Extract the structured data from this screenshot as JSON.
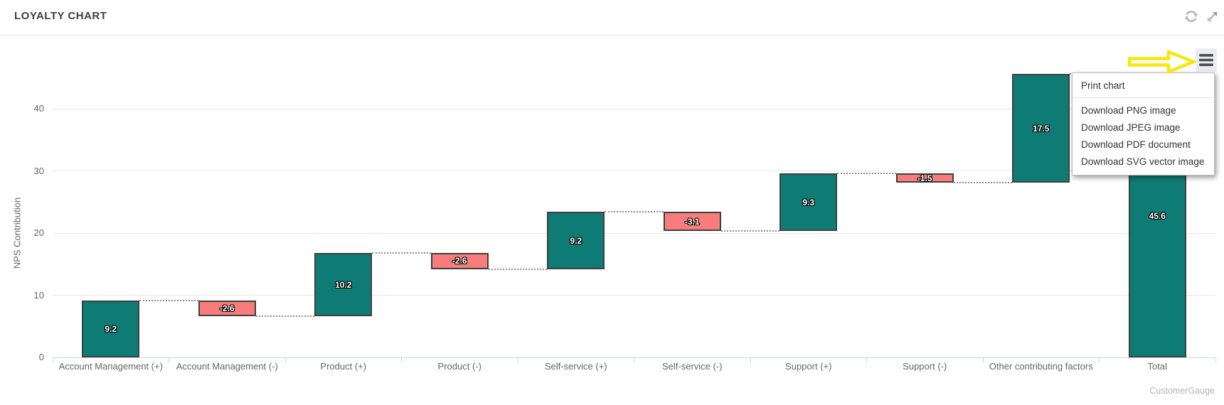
{
  "widget": {
    "title": "LOYALTY CHART"
  },
  "header_icons": [
    "refresh-icon",
    "expand-icon"
  ],
  "menu": {
    "print_label": "Print chart",
    "download_items": [
      "Download PNG image",
      "Download JPEG image",
      "Download PDF document",
      "Download SVG vector image"
    ]
  },
  "watermark": "CustomerGauge",
  "annotation": {
    "arrow_color": "#f4e90f"
  },
  "chart_data": {
    "type": "bar",
    "subtype": "waterfall",
    "title": "LOYALTY CHART",
    "xlabel": "",
    "ylabel": "NPS Contribution",
    "ylim": [
      0,
      47
    ],
    "yticks": [
      0,
      10,
      20,
      30,
      40
    ],
    "grid": true,
    "legend_position": "none",
    "categories": [
      "Account Management (+)",
      "Account Management (-)",
      "Product (+)",
      "Product (-)",
      "Self-service (+)",
      "Self-service (-)",
      "Support (+)",
      "Support (-)",
      "Other contributing factors",
      "Total"
    ],
    "values": [
      9.2,
      -2.6,
      10.2,
      -2.6,
      9.2,
      -3.1,
      9.3,
      -1.5,
      17.5,
      45.6
    ],
    "is_sum": [
      false,
      false,
      false,
      false,
      false,
      false,
      false,
      false,
      false,
      true
    ],
    "running_totals": [
      9.2,
      6.6,
      16.8,
      14.2,
      23.4,
      20.3,
      29.6,
      28.1,
      45.6,
      45.6
    ],
    "data_labels": [
      "9.2",
      "-2.6",
      "10.2",
      "-2.6",
      "9.2",
      "-3.1",
      "9.3",
      "-1.5",
      "17.5",
      "45.6"
    ],
    "colors": {
      "positive": "#0e7c74",
      "negative": "#f87c7c",
      "bar_border": "#3f3f3f",
      "connector": "#8a8a8a"
    }
  }
}
